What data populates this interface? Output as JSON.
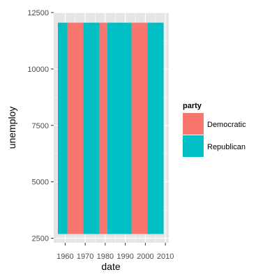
{
  "chart_data": {
    "type": "bar",
    "title": "",
    "xlabel": "date",
    "ylabel": "unemploy",
    "xlim": [
      1954.3,
      2011.7
    ],
    "ylim": [
      2300,
      12500
    ],
    "x_ticks": [
      1960,
      1970,
      1980,
      1990,
      2000,
      2010
    ],
    "x_tick_labels": [
      "1960",
      "1970",
      "1980",
      "1990",
      "2000",
      "2010"
    ],
    "y_ticks": [
      2500,
      5000,
      7500,
      10000,
      12500
    ],
    "y_tick_labels": [
      "2500",
      "5000",
      "7500",
      "10000",
      "12500"
    ],
    "grid": true,
    "legend": {
      "title": "party",
      "position": "right",
      "entries": [
        {
          "label": "Democratic",
          "color": "#F8766D"
        },
        {
          "label": "Republican",
          "color": "#00BFC4"
        }
      ]
    },
    "colors": {
      "Democratic": "#F8766D",
      "Republican": "#00BFC4"
    },
    "panel_background": "#E5E5E5",
    "grid_color": "#FFFFFF",
    "series": [
      {
        "name": "Republican",
        "start": 1953.1,
        "end": 1961.1,
        "ymin": 2685,
        "ymax": 12051
      },
      {
        "name": "Democratic",
        "start": 1961.1,
        "end": 1969.1,
        "ymin": 2685,
        "ymax": 12051
      },
      {
        "name": "Republican",
        "start": 1969.1,
        "end": 1977.1,
        "ymin": 2685,
        "ymax": 12051
      },
      {
        "name": "Democratic",
        "start": 1977.1,
        "end": 1981.1,
        "ymin": 2685,
        "ymax": 12051
      },
      {
        "name": "Republican",
        "start": 1981.1,
        "end": 1993.1,
        "ymin": 2685,
        "ymax": 12051
      },
      {
        "name": "Democratic",
        "start": 1993.1,
        "end": 2001.1,
        "ymin": 2685,
        "ymax": 12051
      },
      {
        "name": "Republican",
        "start": 2001.1,
        "end": 2009.1,
        "ymin": 2685,
        "ymax": 12051
      }
    ]
  }
}
